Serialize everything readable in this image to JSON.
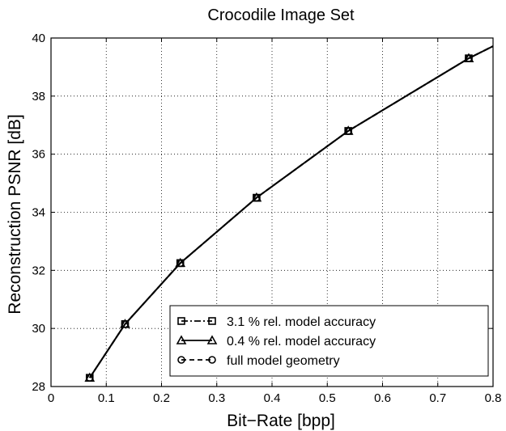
{
  "chart_data": {
    "type": "line",
    "title": "Crocodile Image Set",
    "xlabel": "Bit−Rate [bpp]",
    "ylabel": "Reconstruction PSNR [dB]",
    "xlim": [
      0,
      0.8
    ],
    "ylim": [
      28,
      40
    ],
    "xticks": [
      0,
      0.1,
      0.2,
      0.3,
      0.4,
      0.5,
      0.6,
      0.7,
      0.8
    ],
    "yticks": [
      28,
      30,
      32,
      34,
      36,
      38,
      40
    ],
    "xtick_labels": [
      "0",
      "0.1",
      "0.2",
      "0.3",
      "0.4",
      "0.5",
      "0.6",
      "0.7",
      "0.8"
    ],
    "ytick_labels": [
      "28",
      "30",
      "32",
      "34",
      "36",
      "38",
      "40"
    ],
    "grid": true,
    "legend_position": "bottom-right",
    "series": [
      {
        "name": "3.1 % rel. model accuracy",
        "marker": "square",
        "line_style": "dash-dot",
        "x": [
          0.07,
          0.134,
          0.234,
          0.372,
          0.538,
          0.756,
          0.8
        ],
        "y": [
          28.3,
          30.15,
          32.25,
          34.5,
          36.8,
          39.3,
          39.72
        ]
      },
      {
        "name": "0.4 % rel. model accuracy",
        "marker": "triangle",
        "line_style": "solid",
        "x": [
          0.07,
          0.134,
          0.234,
          0.372,
          0.538,
          0.756,
          0.8
        ],
        "y": [
          28.3,
          30.15,
          32.25,
          34.5,
          36.8,
          39.3,
          39.72
        ]
      },
      {
        "name": "full model geometry",
        "marker": "circle",
        "line_style": "dashed",
        "x": [
          0.07,
          0.134,
          0.234,
          0.372,
          0.538,
          0.756,
          0.8
        ],
        "y": [
          28.3,
          30.15,
          32.25,
          34.5,
          36.8,
          39.3,
          39.72
        ]
      }
    ]
  }
}
